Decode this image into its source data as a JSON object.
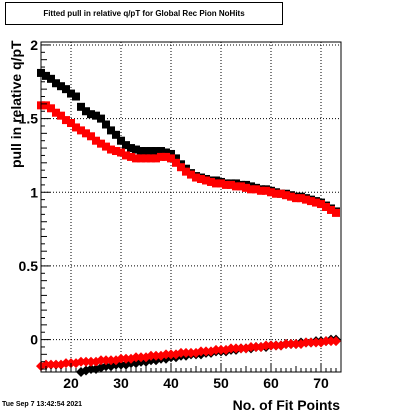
{
  "chart_data": {
    "type": "scatter",
    "title": "Fitted pull in relative q/pT for Global Rec Pion NoHits",
    "xlabel": "No. of Fit Points",
    "ylabel": "pull in relative q/pT",
    "xlim": [
      14,
      74
    ],
    "ylim": [
      -0.22,
      2.02
    ],
    "xticks": [
      20,
      30,
      40,
      50,
      60,
      70
    ],
    "yticks": [
      0,
      0.5,
      1,
      1.5,
      2
    ],
    "ytick_labels": [
      "0",
      "0.5",
      "1",
      "1.5",
      "2"
    ],
    "grid": true,
    "series": [
      {
        "color": "#000000",
        "marker": "square",
        "x": [
          14,
          15,
          16,
          17,
          18,
          19,
          20,
          21,
          22,
          23,
          24,
          25,
          26,
          27,
          28,
          29,
          30,
          31,
          32,
          33,
          34,
          35,
          36,
          37,
          38,
          39,
          40,
          41,
          42,
          43,
          44,
          45,
          46,
          47,
          48,
          49,
          50,
          51,
          52,
          53,
          54,
          55,
          56,
          57,
          58,
          59,
          60,
          61,
          62,
          63,
          64,
          65,
          66,
          67,
          68,
          69,
          70,
          71,
          72,
          73
        ],
        "y": [
          1.81,
          1.79,
          1.77,
          1.74,
          1.72,
          1.7,
          1.67,
          1.65,
          1.58,
          1.55,
          1.53,
          1.52,
          1.5,
          1.46,
          1.42,
          1.39,
          1.35,
          1.32,
          1.3,
          1.29,
          1.28,
          1.28,
          1.28,
          1.28,
          1.28,
          1.27,
          1.26,
          1.23,
          1.19,
          1.16,
          1.13,
          1.11,
          1.1,
          1.09,
          1.08,
          1.08,
          1.07,
          1.06,
          1.06,
          1.06,
          1.05,
          1.05,
          1.04,
          1.03,
          1.02,
          1.02,
          1.01,
          1.0,
          0.99,
          0.99,
          0.98,
          0.97,
          0.97,
          0.96,
          0.95,
          0.94,
          0.93,
          0.91,
          0.89,
          0.87
        ]
      },
      {
        "color": "#ff0000",
        "marker": "square",
        "x": [
          14,
          15,
          16,
          17,
          18,
          19,
          20,
          21,
          22,
          23,
          24,
          25,
          26,
          27,
          28,
          29,
          30,
          31,
          32,
          33,
          34,
          35,
          36,
          37,
          38,
          39,
          40,
          41,
          42,
          43,
          44,
          45,
          46,
          47,
          48,
          49,
          50,
          51,
          52,
          53,
          54,
          55,
          56,
          57,
          58,
          59,
          60,
          61,
          62,
          63,
          64,
          65,
          66,
          67,
          68,
          69,
          70,
          71,
          72,
          73
        ],
        "y": [
          1.59,
          1.59,
          1.57,
          1.54,
          1.52,
          1.49,
          1.47,
          1.44,
          1.42,
          1.4,
          1.38,
          1.35,
          1.33,
          1.31,
          1.29,
          1.28,
          1.27,
          1.25,
          1.24,
          1.23,
          1.23,
          1.23,
          1.23,
          1.23,
          1.24,
          1.24,
          1.23,
          1.2,
          1.17,
          1.14,
          1.12,
          1.1,
          1.09,
          1.08,
          1.07,
          1.06,
          1.06,
          1.05,
          1.05,
          1.04,
          1.04,
          1.03,
          1.02,
          1.02,
          1.01,
          1.01,
          1.0,
          0.99,
          0.99,
          0.98,
          0.97,
          0.96,
          0.96,
          0.95,
          0.94,
          0.93,
          0.92,
          0.9,
          0.88,
          0.86
        ]
      },
      {
        "color": "#000000",
        "marker": "diamond",
        "x": [
          22,
          23,
          24,
          25,
          26,
          27,
          28,
          29,
          30,
          31,
          32,
          33,
          34,
          35,
          36,
          37,
          38,
          39,
          40,
          41,
          42,
          43,
          44,
          45,
          46,
          47,
          48,
          49,
          50,
          51,
          52,
          53,
          54,
          55,
          56,
          57,
          58,
          59,
          60,
          61,
          62,
          63,
          64,
          65,
          66,
          67,
          68,
          69,
          70,
          71,
          72,
          73
        ],
        "y": [
          -0.22,
          -0.21,
          -0.2,
          -0.2,
          -0.19,
          -0.18,
          -0.18,
          -0.17,
          -0.17,
          -0.17,
          -0.16,
          -0.16,
          -0.15,
          -0.15,
          -0.14,
          -0.14,
          -0.13,
          -0.13,
          -0.12,
          -0.12,
          -0.11,
          -0.11,
          -0.1,
          -0.1,
          -0.1,
          -0.09,
          -0.09,
          -0.08,
          -0.08,
          -0.08,
          -0.07,
          -0.07,
          -0.06,
          -0.06,
          -0.06,
          -0.05,
          -0.05,
          -0.05,
          -0.04,
          -0.04,
          -0.04,
          -0.03,
          -0.03,
          -0.03,
          -0.02,
          -0.02,
          -0.02,
          -0.01,
          -0.01,
          -0.01,
          0.0,
          0.0
        ]
      },
      {
        "color": "#ff0000",
        "marker": "diamond",
        "x": [
          14,
          15,
          16,
          17,
          18,
          19,
          20,
          21,
          22,
          23,
          24,
          25,
          26,
          27,
          28,
          29,
          30,
          31,
          32,
          33,
          34,
          35,
          36,
          37,
          38,
          39,
          40,
          41,
          42,
          43,
          44,
          45,
          46,
          47,
          48,
          49,
          50,
          51,
          52,
          53,
          54,
          55,
          56,
          57,
          58,
          59,
          60,
          61,
          62,
          63,
          64,
          65,
          66,
          67,
          68,
          69,
          70,
          71,
          72,
          73
        ],
        "y": [
          -0.18,
          -0.17,
          -0.17,
          -0.17,
          -0.17,
          -0.16,
          -0.16,
          -0.16,
          -0.15,
          -0.15,
          -0.15,
          -0.15,
          -0.14,
          -0.14,
          -0.14,
          -0.14,
          -0.13,
          -0.13,
          -0.13,
          -0.12,
          -0.12,
          -0.12,
          -0.11,
          -0.11,
          -0.11,
          -0.1,
          -0.1,
          -0.1,
          -0.09,
          -0.09,
          -0.09,
          -0.09,
          -0.08,
          -0.08,
          -0.08,
          -0.07,
          -0.07,
          -0.07,
          -0.06,
          -0.06,
          -0.06,
          -0.06,
          -0.05,
          -0.05,
          -0.05,
          -0.04,
          -0.04,
          -0.04,
          -0.04,
          -0.03,
          -0.03,
          -0.03,
          -0.03,
          -0.02,
          -0.02,
          -0.02,
          -0.02,
          -0.01,
          -0.01,
          -0.01
        ]
      }
    ]
  },
  "footer": {
    "date": "Tue Sep  7 13:42:54 2021"
  }
}
